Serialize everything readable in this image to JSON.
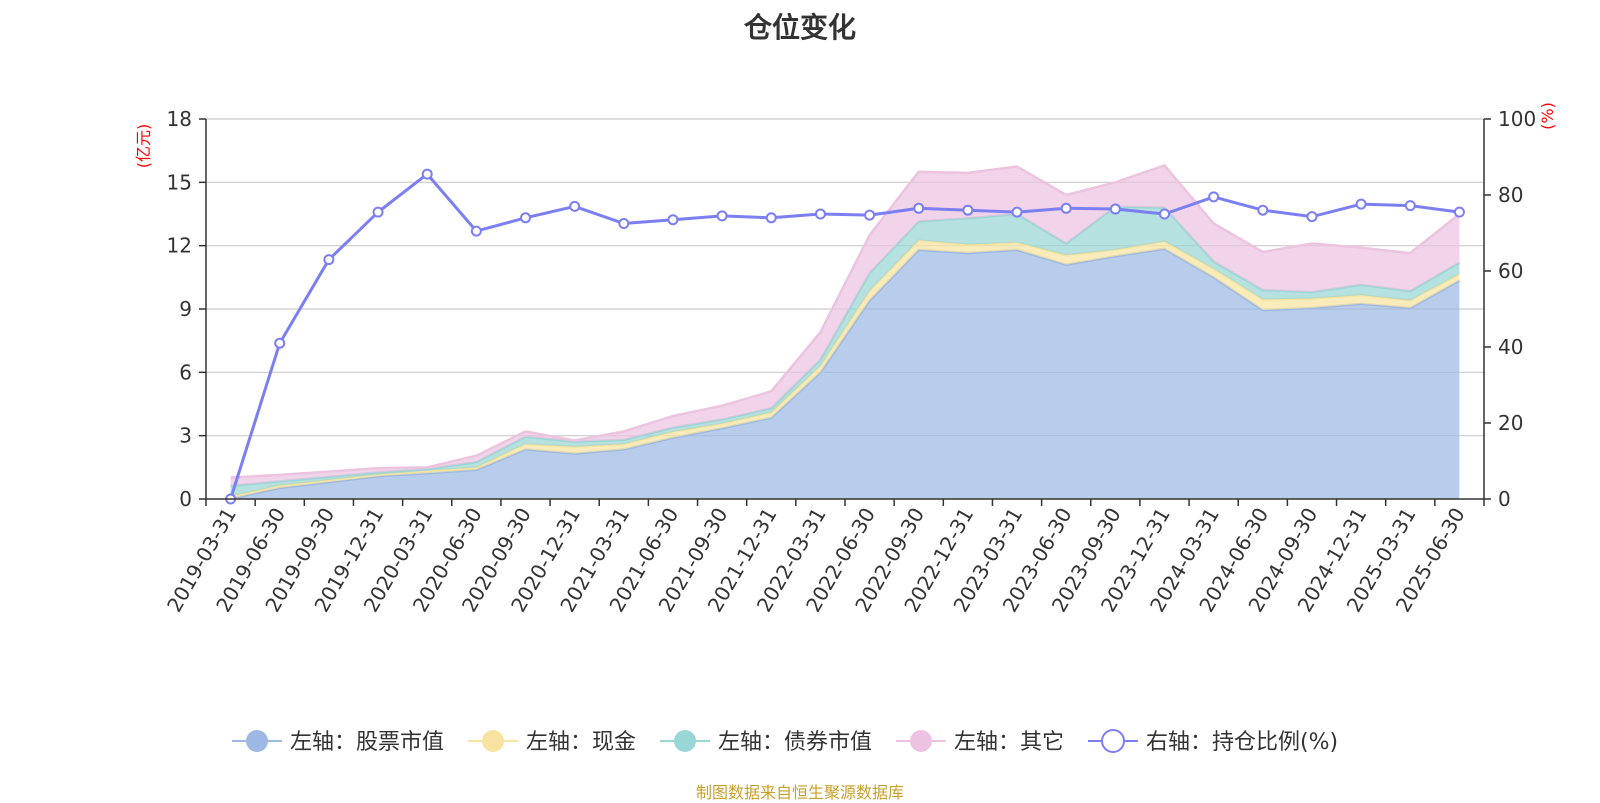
{
  "chart_data": {
    "type": "area",
    "title": "仓位变化",
    "source": "制图数据来自恒生聚源数据库",
    "left_axis_unit": "(亿元)",
    "right_axis_unit": "(%)",
    "left_ylim": [
      0,
      18
    ],
    "left_ticks": [
      0,
      3,
      6,
      9,
      12,
      15,
      18
    ],
    "right_ylim": [
      0,
      100
    ],
    "right_ticks": [
      0,
      20,
      40,
      60,
      80,
      100
    ],
    "grid": true,
    "legend_position": "bottom",
    "categories": [
      "2019-03-31",
      "2019-06-30",
      "2019-09-30",
      "2019-12-31",
      "2020-03-31",
      "2020-06-30",
      "2020-09-30",
      "2020-12-31",
      "2021-03-31",
      "2021-06-30",
      "2021-09-30",
      "2021-12-31",
      "2022-03-31",
      "2022-06-30",
      "2022-09-30",
      "2022-12-31",
      "2023-03-31",
      "2023-06-30",
      "2023-09-30",
      "2023-12-31",
      "2024-03-31",
      "2024-06-30",
      "2024-09-30",
      "2024-12-31",
      "2025-03-31",
      "2025-06-30"
    ],
    "series": [
      {
        "name": "左轴：股票市值",
        "axis": "left",
        "kind": "stacked-area",
        "color": "#9db8e3",
        "values": [
          0.02,
          0.52,
          0.8,
          1.08,
          1.22,
          1.38,
          2.35,
          2.15,
          2.35,
          2.9,
          3.35,
          3.85,
          6.0,
          9.4,
          11.8,
          11.65,
          11.8,
          11.1,
          11.5,
          11.85,
          10.5,
          8.95,
          9.05,
          9.25,
          9.05,
          10.35
        ]
      },
      {
        "name": "左轴：现金",
        "axis": "left",
        "kind": "stacked-area",
        "color": "#f8e4a0",
        "values": [
          0.1,
          0.12,
          0.1,
          0.08,
          0.12,
          0.12,
          0.25,
          0.32,
          0.25,
          0.28,
          0.22,
          0.25,
          0.3,
          0.45,
          0.45,
          0.4,
          0.35,
          0.45,
          0.3,
          0.35,
          0.4,
          0.5,
          0.45,
          0.4,
          0.35,
          0.3
        ]
      },
      {
        "name": "左轴：债券市值",
        "axis": "left",
        "kind": "stacked-area",
        "color": "#99d6d6",
        "values": [
          0.5,
          0.2,
          0.15,
          0.1,
          0.08,
          0.25,
          0.35,
          0.25,
          0.2,
          0.2,
          0.2,
          0.2,
          0.3,
          0.85,
          0.9,
          1.25,
          1.35,
          0.55,
          2.05,
          1.6,
          0.35,
          0.45,
          0.3,
          0.5,
          0.45,
          0.55
        ]
      },
      {
        "name": "左轴：其它",
        "axis": "left",
        "kind": "stacked-area",
        "color": "#ecc3e0",
        "values": [
          0.4,
          0.3,
          0.25,
          0.2,
          0.08,
          0.3,
          0.25,
          0.05,
          0.4,
          0.55,
          0.65,
          0.8,
          1.3,
          1.8,
          2.35,
          2.15,
          2.25,
          2.3,
          1.15,
          2.0,
          1.8,
          1.8,
          2.3,
          1.75,
          1.8,
          2.3
        ]
      },
      {
        "name": "右轴：持仓比例(%)",
        "axis": "right",
        "kind": "line",
        "color": "#7b7ff2",
        "values": [
          0,
          41,
          63,
          75.5,
          85.5,
          70.5,
          74,
          77,
          72.5,
          73.5,
          74.5,
          74,
          75,
          74.7,
          76.5,
          76,
          75.5,
          76.5,
          76.3,
          75,
          79.5,
          76,
          74.3,
          77.6,
          77.2,
          75.5
        ]
      }
    ]
  }
}
